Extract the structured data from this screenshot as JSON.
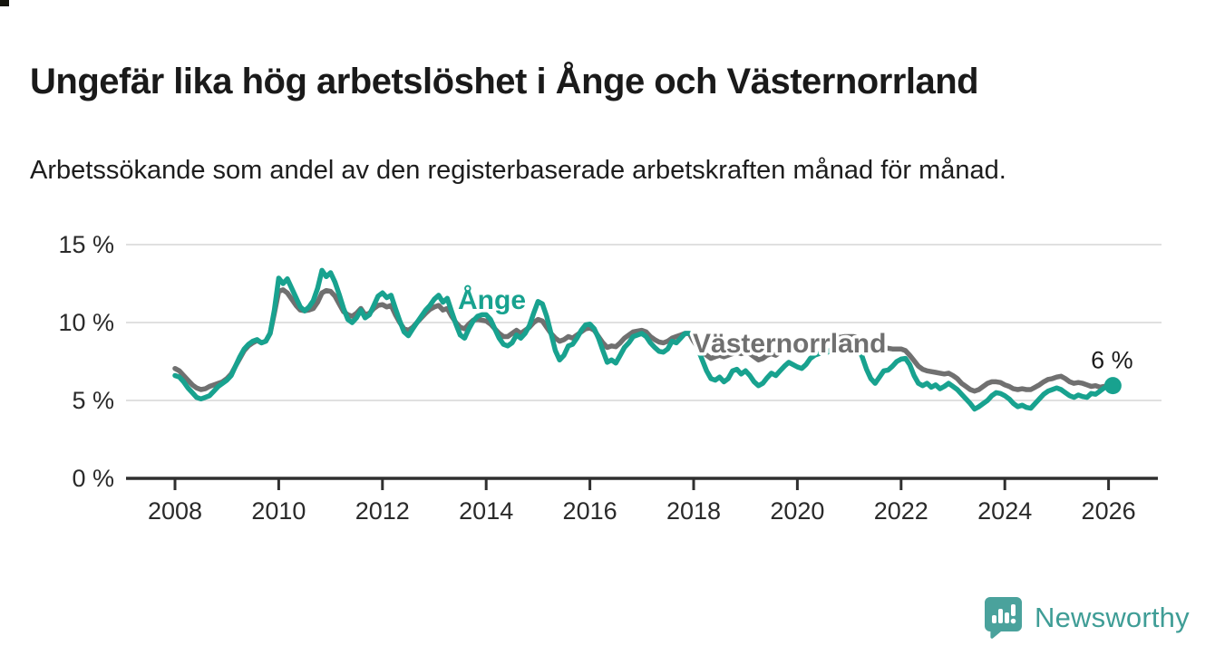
{
  "page": {
    "title": "Ungefär lika hög arbetslöshet i Ånge och Västernorrland",
    "subtitle": "Arbetssökande som andel av den registerbaserade arbetskraften månad för månad."
  },
  "branding": {
    "logo_text": "Newsworthy",
    "logo_color": "#3f9d96",
    "logo_icon": "bar-chart-speech-bubble-icon"
  },
  "chart_data": {
    "type": "line",
    "title": "Ungefär lika hög arbetslöshet i Ånge och Västernorrland",
    "subtitle": "Arbetssökande som andel av den registerbaserade arbetskraften månad för månad.",
    "unit": "%",
    "frequency": "monthly",
    "x_start": "2008-01",
    "x_end": "2026-02",
    "x_tick_years": [
      2008,
      2010,
      2012,
      2014,
      2016,
      2018,
      2020,
      2022,
      2024,
      2026
    ],
    "y_ticks": [
      0,
      5,
      10,
      15
    ],
    "y_tick_labels": [
      "0 %",
      "5 %",
      "10 %",
      "15 %"
    ],
    "ylim": [
      0,
      15
    ],
    "grid": "horizontal",
    "legend_position": "inline-labels",
    "end_label": "6 %",
    "colors": {
      "ange": "#18a28f",
      "vasternorrland": "#707070",
      "gridline": "#d6d6d6",
      "axis": "#2f2f2f"
    },
    "series": [
      {
        "name": "Västernorrland",
        "color": "#707070",
        "values": [
          7.05,
          6.9,
          6.6,
          6.3,
          6.0,
          5.8,
          5.7,
          5.75,
          5.9,
          6.0,
          6.1,
          6.2,
          6.4,
          6.7,
          7.2,
          7.7,
          8.2,
          8.5,
          8.7,
          8.85,
          8.7,
          8.8,
          9.3,
          10.6,
          12.0,
          12.1,
          11.9,
          11.5,
          11.1,
          10.8,
          10.75,
          10.8,
          10.9,
          11.3,
          11.9,
          12.05,
          12.0,
          11.7,
          11.2,
          10.7,
          10.5,
          10.4,
          10.6,
          10.9,
          10.5,
          10.6,
          10.9,
          11.1,
          11.15,
          11.0,
          11.1,
          10.5,
          10.0,
          9.6,
          9.5,
          9.7,
          10.0,
          10.3,
          10.6,
          10.85,
          11.0,
          11.1,
          10.8,
          10.9,
          10.4,
          10.0,
          9.7,
          9.6,
          9.9,
          10.15,
          10.2,
          10.15,
          10.1,
          9.9,
          9.6,
          9.3,
          9.1,
          9.1,
          9.3,
          9.5,
          9.3,
          9.5,
          9.7,
          10.0,
          10.2,
          10.1,
          9.7,
          9.3,
          9.0,
          8.8,
          8.9,
          9.1,
          9.0,
          9.2,
          9.4,
          9.6,
          9.65,
          9.5,
          9.1,
          8.7,
          8.4,
          8.5,
          8.45,
          8.7,
          9.0,
          9.2,
          9.4,
          9.45,
          9.5,
          9.4,
          9.1,
          8.9,
          8.75,
          8.7,
          8.8,
          9.0,
          9.1,
          9.2,
          9.3,
          9.3,
          8.8,
          8.4,
          8.1,
          7.9,
          7.7,
          7.8,
          7.9,
          7.8,
          7.9,
          8.0,
          8.1,
          8.0,
          8.1,
          8.0,
          7.8,
          7.6,
          7.7,
          7.9,
          8.0,
          7.9,
          8.1,
          8.2,
          8.3,
          8.35,
          8.4,
          8.5,
          8.7,
          8.85,
          8.9,
          8.9,
          9.0,
          8.95,
          9.0,
          9.05,
          9.05,
          9.1,
          9.1,
          9.1,
          9.0,
          8.8,
          8.6,
          8.5,
          8.4,
          8.45,
          8.4,
          8.35,
          8.3,
          8.3,
          8.3,
          8.2,
          7.9,
          7.55,
          7.2,
          7.0,
          6.9,
          6.85,
          6.8,
          6.75,
          6.7,
          6.75,
          6.6,
          6.4,
          6.1,
          5.9,
          5.7,
          5.6,
          5.7,
          5.9,
          6.1,
          6.2,
          6.2,
          6.15,
          6.0,
          5.9,
          5.75,
          5.7,
          5.75,
          5.7,
          5.7,
          5.85,
          6.0,
          6.2,
          6.35,
          6.4,
          6.5,
          6.55,
          6.4,
          6.2,
          6.1,
          6.15,
          6.1,
          6.0,
          5.9,
          5.95,
          5.85,
          5.9,
          5.85,
          5.85
        ]
      },
      {
        "name": "Ånge",
        "color": "#18a28f",
        "end_dot": true,
        "values": [
          6.6,
          6.5,
          6.2,
          5.8,
          5.5,
          5.2,
          5.1,
          5.2,
          5.3,
          5.6,
          5.9,
          6.1,
          6.3,
          6.6,
          7.2,
          7.8,
          8.3,
          8.6,
          8.8,
          8.9,
          8.7,
          8.8,
          9.3,
          10.8,
          12.85,
          12.5,
          12.8,
          12.2,
          11.6,
          11.0,
          10.75,
          11.0,
          11.4,
          12.2,
          13.35,
          12.95,
          13.2,
          12.6,
          11.8,
          10.9,
          10.2,
          10.0,
          10.3,
          10.8,
          10.3,
          10.5,
          11.1,
          11.7,
          11.9,
          11.6,
          11.75,
          10.9,
          10.1,
          9.4,
          9.15,
          9.6,
          10.0,
          10.4,
          10.8,
          11.1,
          11.5,
          11.75,
          11.3,
          11.55,
          10.7,
          9.9,
          9.2,
          9.0,
          9.6,
          10.1,
          10.4,
          10.5,
          10.5,
          10.2,
          9.6,
          9.0,
          8.6,
          8.5,
          8.7,
          9.2,
          9.0,
          9.3,
          9.8,
          10.6,
          11.35,
          11.2,
          10.4,
          9.3,
          8.2,
          7.6,
          7.9,
          8.5,
          8.6,
          9.0,
          9.5,
          9.85,
          9.9,
          9.6,
          9.0,
          8.2,
          7.45,
          7.6,
          7.4,
          7.9,
          8.4,
          8.7,
          9.1,
          9.2,
          9.3,
          9.1,
          8.7,
          8.4,
          8.15,
          8.1,
          8.3,
          8.8,
          8.7,
          9.0,
          9.3,
          9.3,
          9.2,
          8.3,
          7.6,
          6.9,
          6.4,
          6.3,
          6.5,
          6.2,
          6.4,
          6.9,
          7.0,
          6.7,
          6.9,
          6.6,
          6.2,
          5.95,
          6.1,
          6.45,
          6.75,
          6.6,
          6.9,
          7.2,
          7.45,
          7.3,
          7.15,
          7.05,
          7.3,
          7.7,
          7.9,
          8.0,
          8.15,
          8.1,
          8.3,
          8.45,
          8.5,
          8.55,
          8.6,
          8.6,
          8.4,
          7.8,
          7.0,
          6.4,
          6.1,
          6.5,
          6.9,
          6.95,
          7.2,
          7.5,
          7.65,
          7.7,
          7.3,
          6.6,
          6.1,
          5.95,
          6.1,
          5.85,
          6.0,
          5.75,
          5.9,
          6.1,
          5.9,
          5.7,
          5.4,
          5.1,
          4.8,
          4.45,
          4.6,
          4.8,
          5.0,
          5.3,
          5.5,
          5.45,
          5.3,
          5.1,
          4.8,
          4.6,
          4.7,
          4.55,
          4.5,
          4.8,
          5.1,
          5.4,
          5.6,
          5.7,
          5.8,
          5.7,
          5.5,
          5.3,
          5.2,
          5.35,
          5.25,
          5.2,
          5.45,
          5.4,
          5.6,
          5.8,
          5.9,
          5.95
        ]
      }
    ]
  }
}
